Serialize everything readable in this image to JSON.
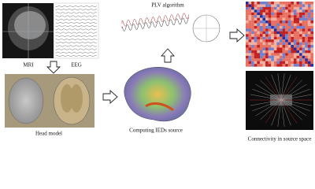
{
  "labels": {
    "mri": "MRI",
    "eeg": "EEG",
    "plv": "PLV algorithm",
    "head_model": "Head model",
    "source": "Computing IEDs source",
    "connectivity": "Connectivity in source space"
  }
}
